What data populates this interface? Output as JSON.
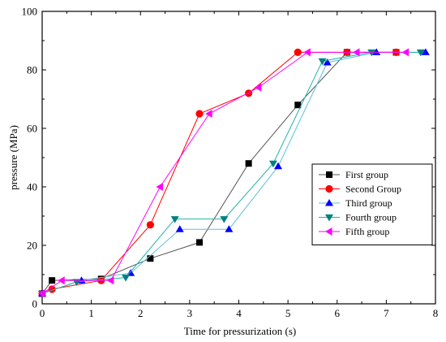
{
  "chart_data": {
    "type": "line",
    "title": "",
    "xlabel": "Time for pressurization (s)",
    "ylabel": "pressure (MPa)",
    "xlim": [
      0,
      8
    ],
    "ylim": [
      0,
      100
    ],
    "xticks": [
      "0",
      "1",
      "2",
      "3",
      "4",
      "5",
      "6",
      "7",
      "8"
    ],
    "yticks": [
      "0",
      "20",
      "40",
      "60",
      "80",
      "100"
    ],
    "grid": false,
    "legend_position": "center-right",
    "series": [
      {
        "name": "First group",
        "color": "#000000",
        "line_color": "#555555",
        "marker": "square",
        "x": [
          0,
          0.2,
          1.2,
          2.2,
          3.2,
          4.2,
          5.2,
          6.2,
          7.2
        ],
        "y": [
          3.5,
          8,
          8.5,
          15.5,
          21,
          48,
          68,
          86,
          86
        ]
      },
      {
        "name": "Second Group",
        "color": "#ff0000",
        "line_color": "#ff0000",
        "marker": "circle",
        "x": [
          0,
          0.2,
          1.2,
          2.2,
          3.2,
          4.2,
          5.2,
          6.2,
          7.2
        ],
        "y": [
          3.5,
          5,
          8,
          27,
          65,
          72,
          86,
          86,
          86
        ]
      },
      {
        "name": "Third group",
        "color": "#0000ff",
        "line_color": "#5bc0de",
        "marker": "triangle-up",
        "x": [
          0,
          0.8,
          1.8,
          2.8,
          3.8,
          4.8,
          5.8,
          6.8,
          7.8
        ],
        "y": [
          3.5,
          8,
          10.5,
          25.5,
          25.5,
          47,
          82.5,
          86,
          86
        ]
      },
      {
        "name": "Fourth group",
        "color": "#008080",
        "line_color": "#20b2aa",
        "marker": "triangle-down",
        "x": [
          0,
          0.7,
          1.7,
          2.7,
          3.7,
          4.7,
          5.7,
          6.7,
          7.7
        ],
        "y": [
          3.5,
          7.5,
          9,
          29,
          29,
          48,
          83,
          86,
          86
        ]
      },
      {
        "name": "Fifth group",
        "color": "#ff00ff",
        "line_color": "#ff00ff",
        "marker": "triangle-left",
        "x": [
          0,
          0.4,
          1.4,
          2.4,
          3.4,
          4.4,
          5.4,
          6.4,
          7.4
        ],
        "y": [
          3.5,
          8,
          8,
          40,
          65,
          74,
          86,
          86,
          86
        ]
      }
    ]
  }
}
